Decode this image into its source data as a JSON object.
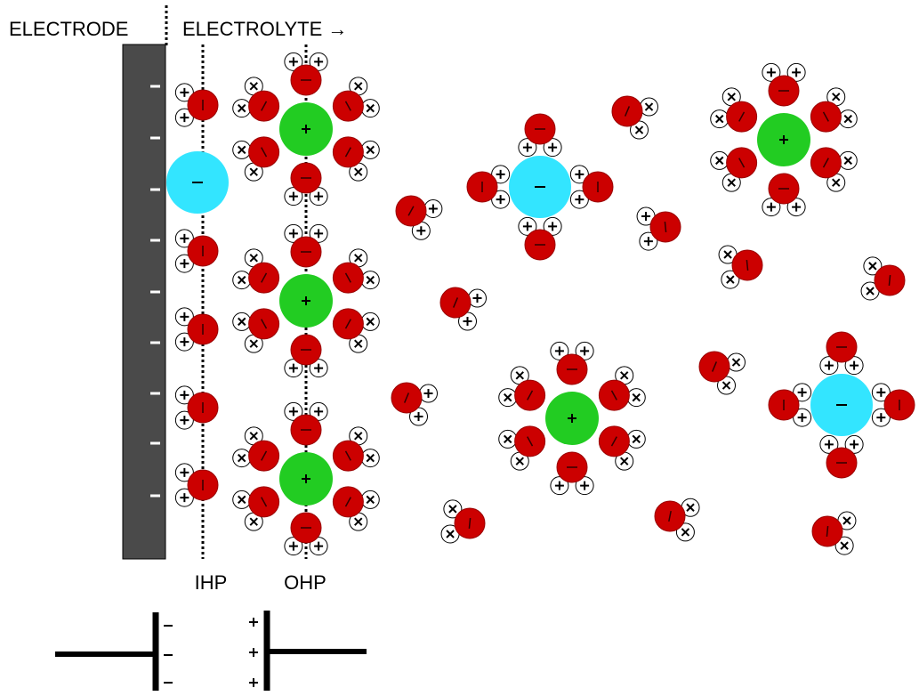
{
  "labels": {
    "electrode": "ELECTRODE",
    "electrolyte": "ELECTROLYTE →",
    "ihp": "IHP",
    "ohp": "OHP"
  }
}
